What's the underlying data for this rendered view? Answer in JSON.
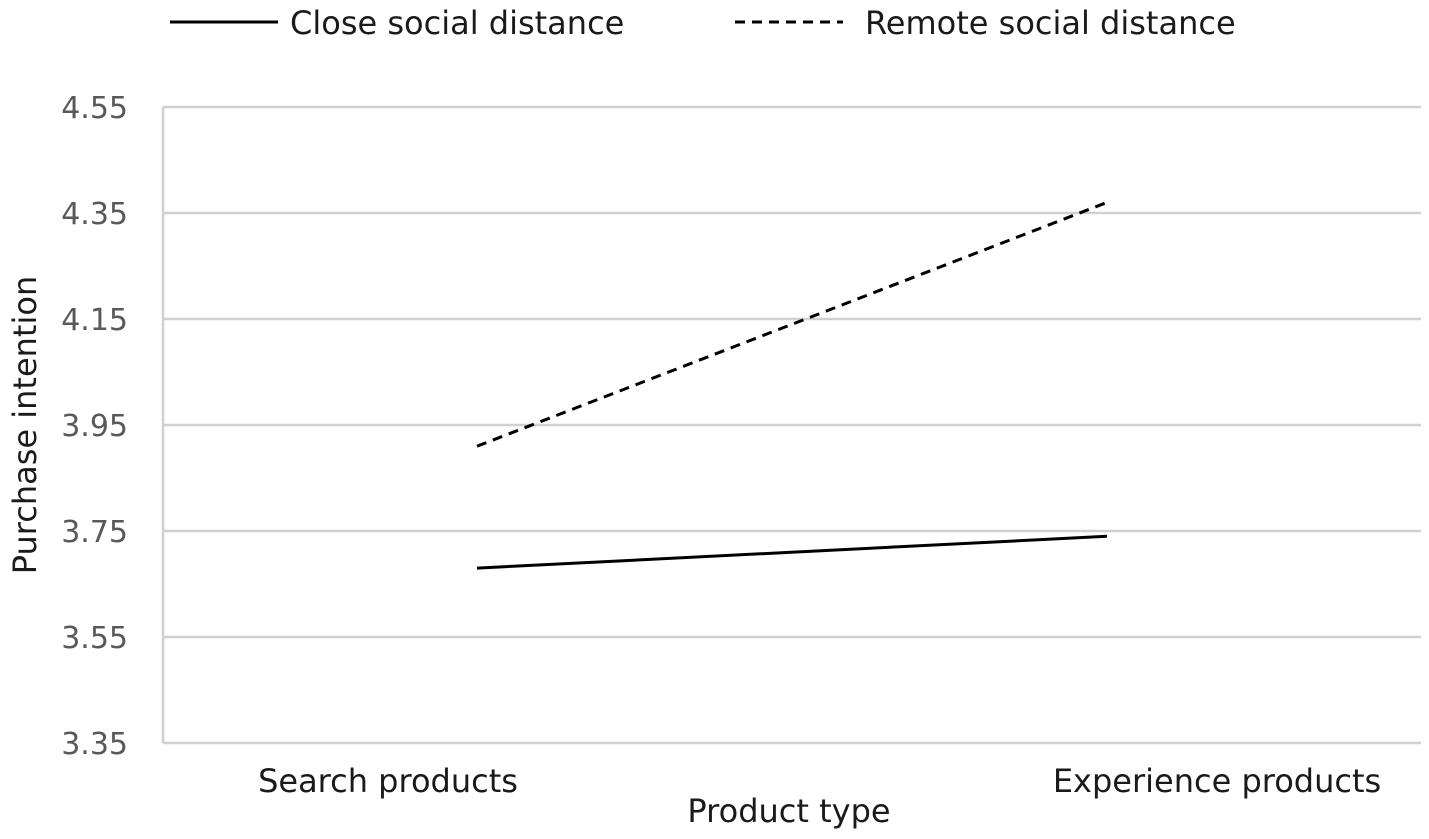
{
  "chart_data": {
    "type": "line",
    "categories": [
      "Search products",
      "Experience products"
    ],
    "series": [
      {
        "name": "Close social distance",
        "values": [
          3.68,
          3.74
        ],
        "color": "#000000",
        "dash": "solid"
      },
      {
        "name": "Remote social distance",
        "values": [
          3.91,
          4.37
        ],
        "color": "#000000",
        "dash": "dashed"
      }
    ],
    "xlabel": "Product type",
    "ylabel": "Purchase intention",
    "ylim": [
      3.35,
      4.55
    ],
    "yticks": [
      "3.35",
      "3.55",
      "3.75",
      "3.95",
      "4.15",
      "4.35",
      "4.55"
    ],
    "grid": true,
    "legend_position": "top"
  }
}
